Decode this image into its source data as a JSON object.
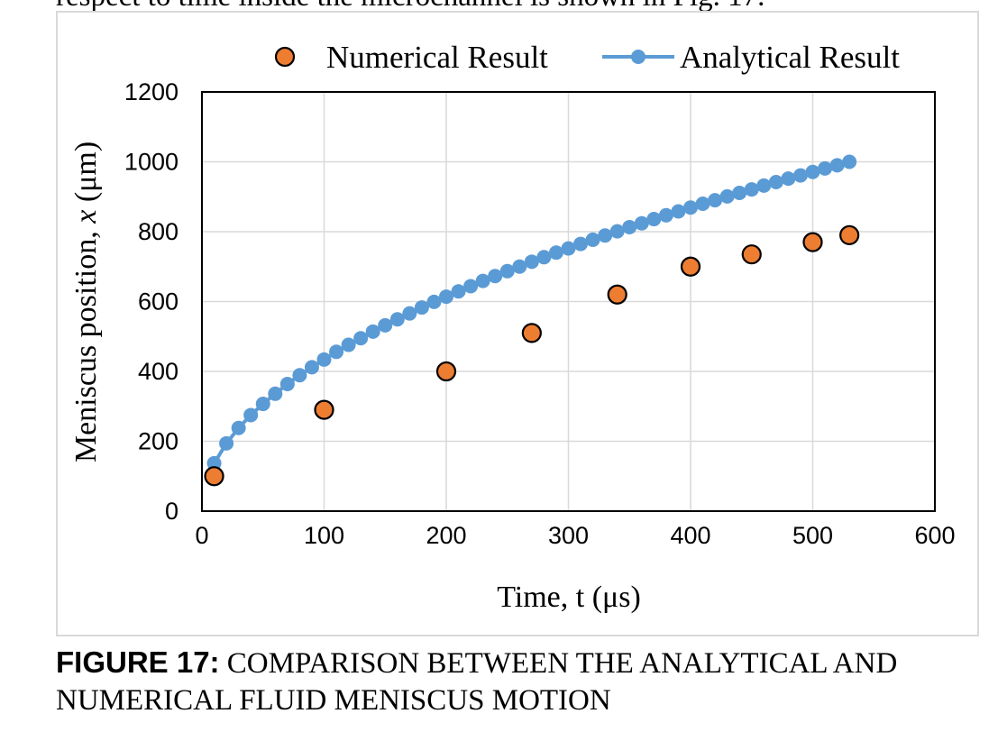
{
  "page_top_text": "respect to time inside the microchannel is shown in Fig. 17.",
  "caption": {
    "label": "FIGURE 17:",
    "text": " COMPARISON BETWEEN THE ANALYTICAL AND NUMERICAL FLUID MENISCUS MOTION"
  },
  "chart_data": {
    "type": "scatter",
    "title": "",
    "xlabel": "Time, t (μs)",
    "ylabel_parts": [
      "Meniscus position, ",
      "x",
      " (μm)"
    ],
    "xlim": [
      0,
      600
    ],
    "ylim": [
      0,
      1200
    ],
    "xticks": [
      0,
      100,
      200,
      300,
      400,
      500,
      600
    ],
    "yticks": [
      0,
      200,
      400,
      600,
      800,
      1000,
      1200
    ],
    "xtick_labels": [
      "0",
      "100",
      "200",
      "300",
      "400",
      "500",
      "600"
    ],
    "ytick_labels": [
      "0",
      "200",
      "400",
      "600",
      "800",
      "1000",
      "1200"
    ],
    "grid": true,
    "legend_position": "top",
    "series": [
      {
        "name": "Numerical Result",
        "style": "markers",
        "color": "#ed7d31",
        "edge_color": "#000000",
        "x": [
          10,
          100,
          200,
          270,
          340,
          400,
          450,
          500,
          530
        ],
        "y": [
          100,
          290,
          400,
          510,
          620,
          700,
          735,
          770,
          790
        ]
      },
      {
        "name": "Analytical Result",
        "style": "line-markers",
        "color": "#5b9bd5",
        "x": [
          10,
          20,
          30,
          40,
          50,
          60,
          70,
          80,
          90,
          100,
          110,
          120,
          130,
          140,
          150,
          160,
          170,
          180,
          190,
          200,
          210,
          220,
          230,
          240,
          250,
          260,
          270,
          280,
          290,
          300,
          310,
          320,
          330,
          340,
          350,
          360,
          370,
          380,
          390,
          400,
          410,
          420,
          430,
          440,
          450,
          460,
          470,
          480,
          490,
          500,
          510,
          520,
          530
        ],
        "y": [
          137,
          194,
          238,
          275,
          307,
          336,
          364,
          389,
          412,
          434,
          456,
          476,
          495,
          514,
          532,
          549,
          566,
          583,
          599,
          614,
          629,
          644,
          659,
          673,
          687,
          700,
          714,
          727,
          740,
          752,
          765,
          777,
          789,
          801,
          813,
          824,
          836,
          847,
          858,
          869,
          880,
          890,
          901,
          911,
          921,
          932,
          942,
          952,
          961,
          971,
          981,
          990,
          1000
        ]
      }
    ]
  }
}
